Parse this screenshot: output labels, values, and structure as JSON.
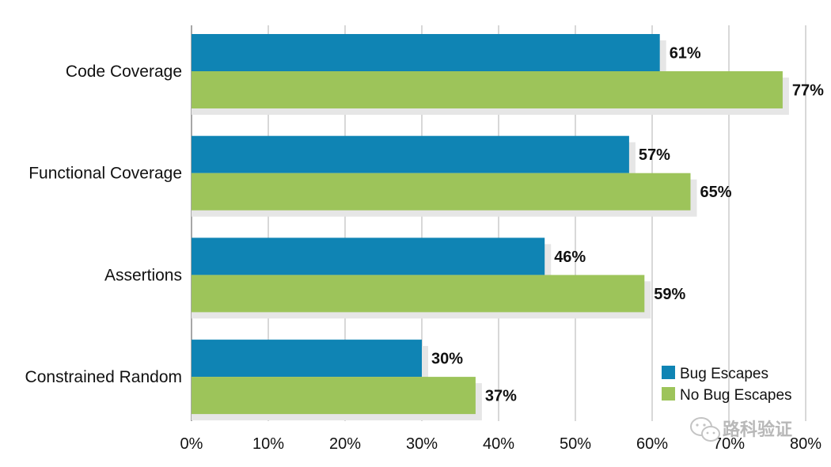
{
  "chart_data": {
    "type": "bar",
    "orientation": "horizontal",
    "categories": [
      "Code Coverage",
      "Functional Coverage",
      "Assertions",
      "Constrained Random"
    ],
    "series": [
      {
        "name": "Bug Escapes",
        "values": [
          61,
          57,
          46,
          30
        ],
        "color": "#0f84b4"
      },
      {
        "name": "No Bug Escapes",
        "values": [
          77,
          65,
          59,
          37
        ],
        "color": "#9dc45a"
      }
    ],
    "xlim": [
      0,
      80
    ],
    "x_ticks": [
      0,
      10,
      20,
      30,
      40,
      50,
      60,
      70,
      80
    ],
    "tick_suffix": "%",
    "value_suffix": "%",
    "grid": true,
    "legend_position": "bottom-right",
    "title": "",
    "xlabel": "",
    "ylabel": ""
  },
  "watermark": {
    "text": "路科验证",
    "icon": "wechat-icon"
  }
}
